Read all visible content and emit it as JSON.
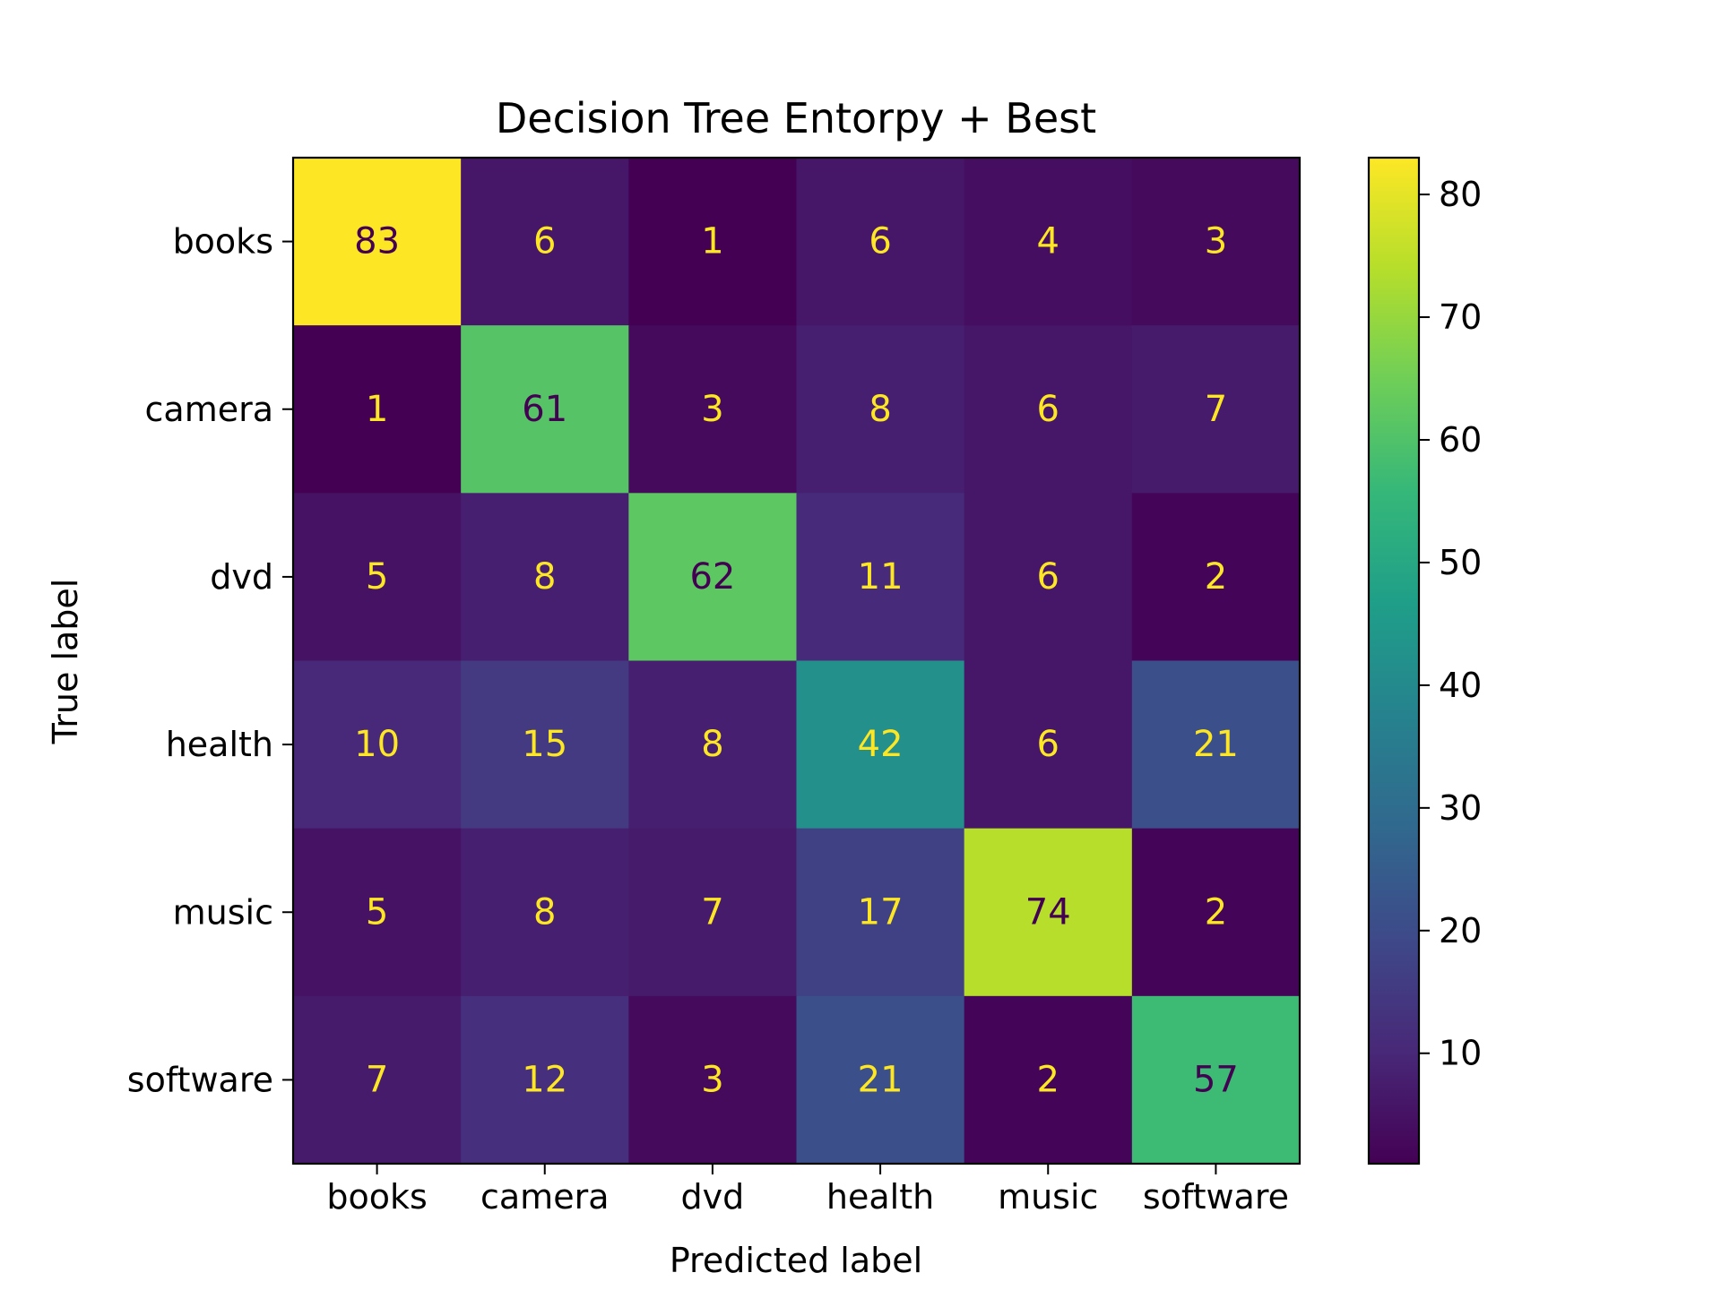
{
  "chart_data": {
    "type": "heatmap",
    "title": "Decision Tree Entorpy + Best",
    "xlabel": "Predicted label",
    "ylabel": "True label",
    "x_categories": [
      "books",
      "camera",
      "dvd",
      "health",
      "music",
      "software"
    ],
    "y_categories": [
      "books",
      "camera",
      "dvd",
      "health",
      "music",
      "software"
    ],
    "matrix": [
      [
        83,
        6,
        1,
        6,
        4,
        3
      ],
      [
        1,
        61,
        3,
        8,
        6,
        7
      ],
      [
        5,
        8,
        62,
        11,
        6,
        2
      ],
      [
        10,
        15,
        8,
        42,
        6,
        21
      ],
      [
        5,
        8,
        7,
        17,
        74,
        2
      ],
      [
        7,
        12,
        3,
        21,
        2,
        57
      ]
    ],
    "colormap": "viridis",
    "colorbar": {
      "vmin": 1,
      "vmax": 83,
      "ticks": [
        10,
        20,
        30,
        40,
        50,
        60,
        70,
        80
      ]
    },
    "text_colors": {
      "light": "#fde725",
      "dark": "#440154"
    }
  }
}
